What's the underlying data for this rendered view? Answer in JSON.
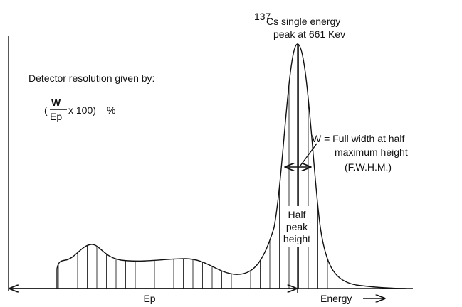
{
  "peak_label": {
    "isotope_mass": "137",
    "line1": "Cs  single energy",
    "line2": "peak at 661 Kev"
  },
  "resolution": {
    "title": "Detector resolution given by:",
    "open": "(",
    "numerator": "W",
    "denominator": "Ep",
    "rest": "x 100)",
    "percent": "%"
  },
  "fwhm_label": {
    "line1": "W = Full width at half",
    "line2": "maximum height",
    "line3": "(F.W.H.M.)"
  },
  "half_peak_label": {
    "line1": "Half",
    "line2": "peak",
    "line3": "height"
  },
  "ep_label": "Ep",
  "energy_label": "Energy"
}
